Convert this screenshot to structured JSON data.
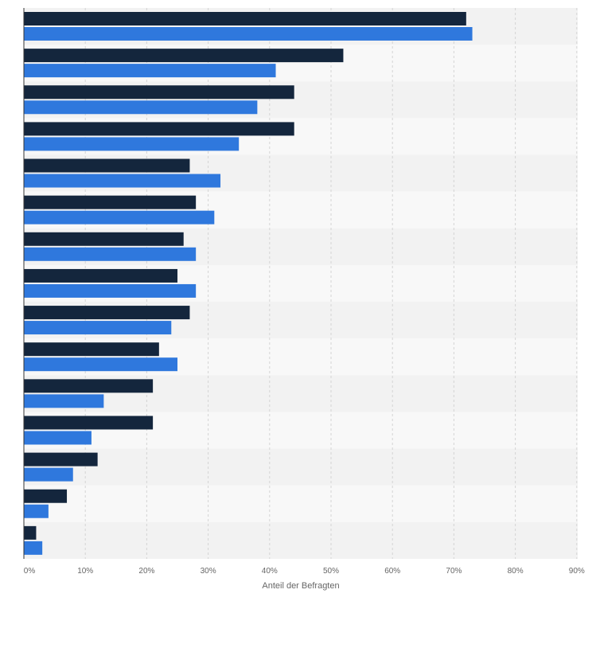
{
  "chart_data": {
    "type": "bar",
    "orientation": "horizontal",
    "xlabel": "Anteil der Befragten",
    "x_ticks": [
      "0%",
      "10%",
      "20%",
      "30%",
      "40%",
      "50%",
      "60%",
      "70%",
      "80%",
      "90%"
    ],
    "xlim": [
      0,
      90
    ],
    "grid": true,
    "category_labels_visible": false,
    "series": [
      {
        "color": "#14263d",
        "values": [
          72,
          52,
          44,
          44,
          27,
          28,
          26,
          25,
          27,
          22,
          21,
          21,
          12,
          7,
          2
        ]
      },
      {
        "color": "#2f78dd",
        "values": [
          73,
          41,
          38,
          35,
          32,
          31,
          28,
          28,
          24,
          25,
          13,
          11,
          8,
          4,
          3
        ]
      }
    ]
  }
}
